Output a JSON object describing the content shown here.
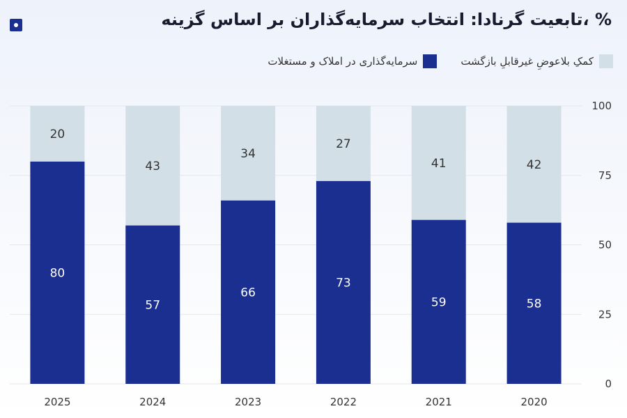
{
  "logo_icon": "square-dot-logo-icon",
  "chart_data": {
    "type": "bar",
    "stacked": true,
    "title": "% ،تابعیت گرنادا: انتخاب سرمایه‌گذاران بر اساس گزینه",
    "xlabel": "",
    "ylabel": "",
    "ylim": [
      0,
      100
    ],
    "yticks": [
      0,
      25,
      50,
      75,
      100
    ],
    "categories": [
      "2025",
      "2024",
      "2023",
      "2022",
      "2021",
      "2020"
    ],
    "series": [
      {
        "name": "سرمایه‌گذاری در املاک و مستغلات",
        "color": "#1a2f8f",
        "values": [
          80,
          57,
          66,
          73,
          59,
          58
        ]
      },
      {
        "name": "کمکِ بلاعوضِ غیرقابلِ بازگشت",
        "color": "#d3dfe6",
        "values": [
          20,
          43,
          34,
          27,
          41,
          42
        ]
      }
    ],
    "legend_position": "top-right",
    "grid": true
  }
}
